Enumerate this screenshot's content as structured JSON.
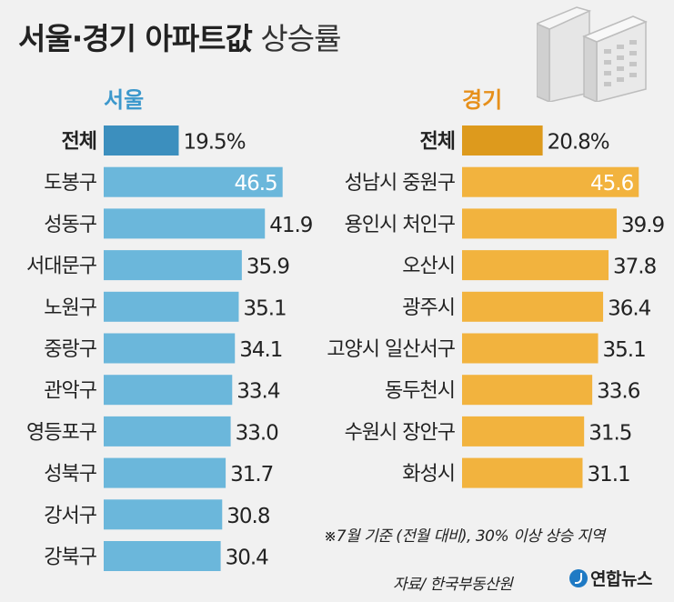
{
  "title": {
    "bold": "서울·경기 아파트값",
    "light": "상승률"
  },
  "footnote": "※7월 기준 (전월 대비), 30% 이상 상승 지역",
  "source": "자료/ 한국부동산원",
  "logo": "연합뉴스",
  "colors": {
    "seoul_total": "#3c8fbe",
    "seoul_bar": "#6bb7db",
    "seoul_label": "#3c98cc",
    "gyeonggi_total": "#dd9a1d",
    "gyeonggi_bar": "#f2b33e",
    "gyeonggi_label": "#e68f1a"
  },
  "chart_data": [
    {
      "type": "bar",
      "orientation": "horizontal",
      "title": "서울",
      "categories": [
        "전체",
        "도봉구",
        "성동구",
        "서대문구",
        "노원구",
        "중랑구",
        "관악구",
        "영등포구",
        "성북구",
        "강서구",
        "강북구"
      ],
      "value_labels": [
        "19.5%",
        "46.5",
        "41.9",
        "35.9",
        "35.1",
        "34.1",
        "33.4",
        "33.0",
        "31.7",
        "30.8",
        "30.4"
      ],
      "values": [
        19.5,
        46.5,
        41.9,
        35.9,
        35.1,
        34.1,
        33.4,
        33.0,
        31.7,
        30.8,
        30.4
      ],
      "xlim": [
        0,
        50
      ]
    },
    {
      "type": "bar",
      "orientation": "horizontal",
      "title": "경기",
      "categories": [
        "전체",
        "성남시 중원구",
        "용인시 처인구",
        "오산시",
        "광주시",
        "고양시 일산서구",
        "동두천시",
        "수원시 장안구",
        "화성시"
      ],
      "value_labels": [
        "20.8%",
        "45.6",
        "39.9",
        "37.8",
        "36.4",
        "35.1",
        "33.6",
        "31.5",
        "31.1"
      ],
      "values": [
        20.8,
        45.6,
        39.9,
        37.8,
        36.4,
        35.1,
        33.6,
        31.5,
        31.1
      ],
      "xlim": [
        0,
        50
      ]
    }
  ]
}
